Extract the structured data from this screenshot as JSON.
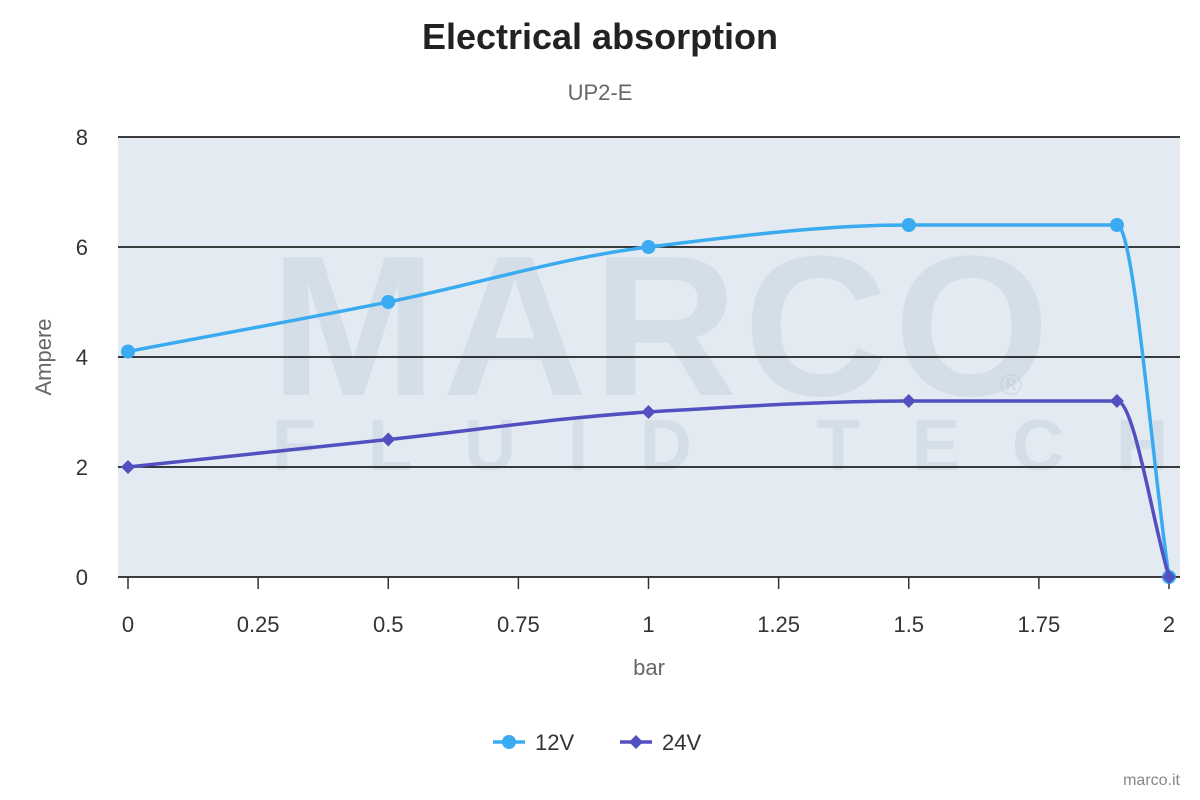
{
  "chart_data": {
    "type": "line",
    "title": "Electrical absorption",
    "subtitle": "UP2-E",
    "xlabel": "bar",
    "ylabel": "Ampere",
    "xlim": [
      0,
      2
    ],
    "ylim": [
      0,
      8
    ],
    "x_ticks": [
      "0",
      "0.25",
      "0.5",
      "0.75",
      "1",
      "1.25",
      "1.5",
      "1.75",
      "2"
    ],
    "y_ticks": [
      "0",
      "2",
      "4",
      "6",
      "8"
    ],
    "grid": "horizontal",
    "legend_position": "bottom-center",
    "series": [
      {
        "name": "12V",
        "color": "#3aabf0",
        "marker": "circle",
        "x": [
          0,
          0.5,
          1,
          1.5,
          1.9,
          2
        ],
        "y": [
          4.1,
          5,
          6,
          6.4,
          6.4,
          0
        ]
      },
      {
        "name": "24V",
        "color": "#5250c0",
        "marker": "diamond",
        "x": [
          0,
          0.5,
          1,
          1.5,
          1.9,
          2
        ],
        "y": [
          2,
          2.5,
          3,
          3.2,
          3.2,
          0
        ]
      }
    ]
  },
  "watermark": {
    "brand": "MARCO",
    "tagline": "FLUID TECH",
    "mark": "®"
  },
  "credit": "marco.it"
}
